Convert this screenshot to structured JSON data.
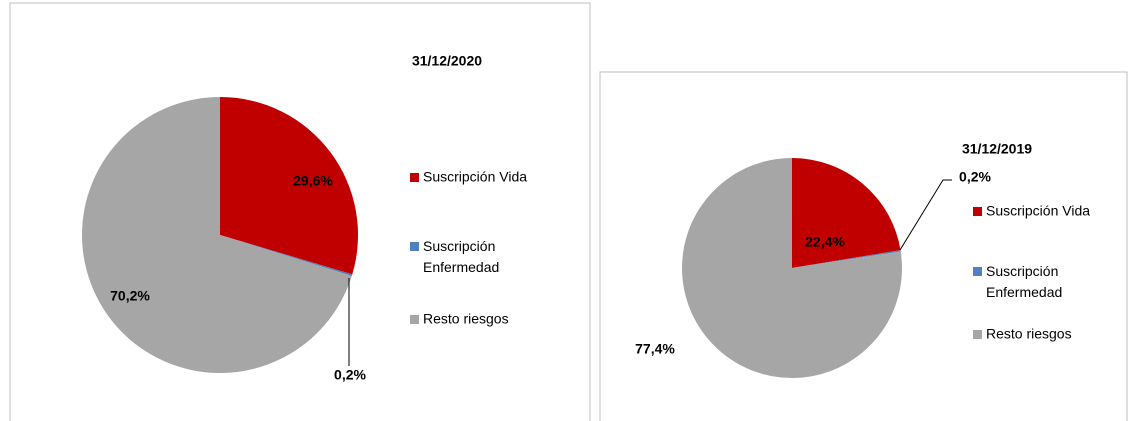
{
  "chart_data": [
    {
      "type": "pie",
      "title": "31/12/2020",
      "categories": [
        "Suscripción Vida",
        "Suscripción Enfermedad",
        "Resto riesgos"
      ],
      "values": [
        29.6,
        0.2,
        70.2
      ],
      "value_labels": [
        "29,6%",
        "0,2%",
        "70,2%"
      ],
      "colors": [
        "#c00000",
        "#4f81bd",
        "#a6a6a6"
      ],
      "legend": "right"
    },
    {
      "type": "pie",
      "title": "31/12/2019",
      "categories": [
        "Suscripción Vida",
        "Suscripción Enfermedad",
        "Resto riesgos"
      ],
      "values": [
        22.4,
        0.2,
        77.4
      ],
      "value_labels": [
        "22,4%",
        "0,2%",
        "77,4%"
      ],
      "colors": [
        "#c00000",
        "#4f81bd",
        "#a6a6a6"
      ],
      "legend": "right"
    }
  ]
}
